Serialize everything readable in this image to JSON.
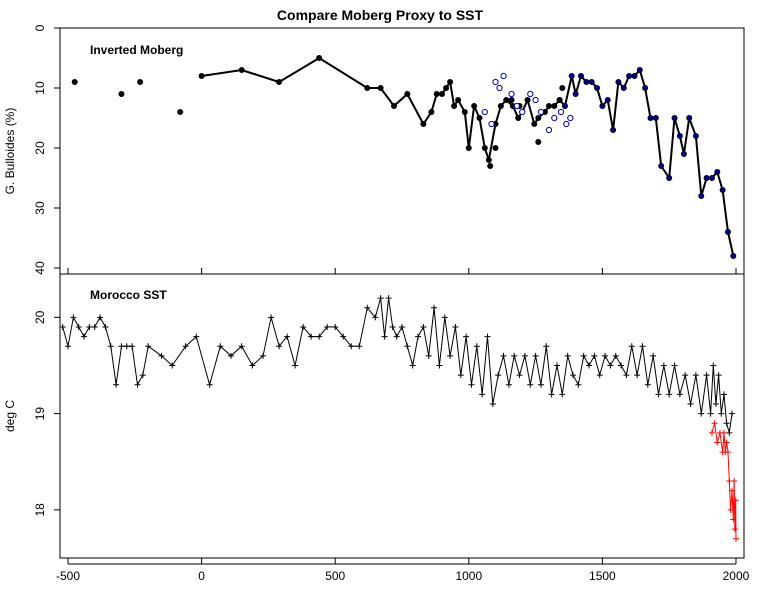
{
  "chart_data": [
    {
      "type": "line",
      "title": "Compare Moberg Proxy to SST",
      "annotation": "Inverted Moberg",
      "ylabel": "G. Bulloides (%)",
      "y_inverted": true,
      "xlim": [
        -530,
        2030
      ],
      "ylim": [
        0,
        41
      ],
      "x_ticks": [
        -500,
        0,
        500,
        1000,
        1500,
        2000
      ],
      "y_ticks": [
        0,
        10,
        20,
        30,
        40
      ],
      "colors": {
        "main": "#000000",
        "recent": "#00008b",
        "alt": "#0000cc"
      },
      "series": [
        {
          "style": "isolated-points",
          "points": [
            [
              -475,
              9
            ],
            [
              -300,
              11
            ],
            [
              -230,
              9
            ],
            [
              -80,
              14
            ]
          ]
        },
        {
          "style": "line-with-points",
          "points": [
            [
              0,
              8
            ],
            [
              150,
              7
            ],
            [
              290,
              9
            ],
            [
              440,
              5
            ],
            [
              620,
              10
            ],
            [
              670,
              10
            ],
            [
              720,
              13
            ],
            [
              770,
              11
            ],
            [
              830,
              16
            ],
            [
              860,
              14
            ],
            [
              880,
              11
            ],
            [
              900,
              11
            ],
            [
              915,
              10
            ],
            [
              930,
              9
            ],
            [
              945,
              13
            ],
            [
              960,
              12
            ],
            [
              985,
              14
            ],
            [
              1000,
              20
            ],
            [
              1020,
              13
            ],
            [
              1040,
              15
            ],
            [
              1060,
              20
            ],
            [
              1075,
              22
            ],
            [
              1100,
              16
            ],
            [
              1120,
              13
            ],
            [
              1140,
              12
            ],
            [
              1165,
              13
            ],
            [
              1185,
              15
            ],
            [
              1200,
              14
            ],
            [
              1220,
              12
            ],
            [
              1245,
              16
            ],
            [
              1260,
              15
            ],
            [
              1285,
              14
            ],
            [
              1300,
              13
            ],
            [
              1320,
              13
            ],
            [
              1340,
              12
            ]
          ]
        },
        {
          "style": "isolated-points",
          "points": [
            [
              1080,
              23
            ],
            [
              1100,
              20
            ],
            [
              1160,
              12
            ],
            [
              1190,
              13
            ],
            [
              1260,
              19
            ],
            [
              1350,
              10
            ]
          ]
        },
        {
          "style": "open-circles",
          "points": [
            [
              1060,
              14
            ],
            [
              1085,
              16
            ],
            [
              1100,
              9
            ],
            [
              1115,
              10
            ],
            [
              1130,
              8
            ],
            [
              1160,
              11
            ],
            [
              1180,
              13
            ],
            [
              1200,
              14
            ],
            [
              1230,
              11
            ],
            [
              1250,
              12
            ],
            [
              1270,
              14
            ],
            [
              1300,
              17
            ],
            [
              1320,
              15
            ],
            [
              1345,
              14
            ],
            [
              1365,
              16
            ],
            [
              1380,
              15
            ]
          ]
        },
        {
          "style": "line-with-points",
          "points": [
            [
              1340,
              12
            ],
            [
              1360,
              13
            ],
            [
              1385,
              8
            ],
            [
              1400,
              11
            ],
            [
              1420,
              8
            ],
            [
              1440,
              9
            ],
            [
              1460,
              9
            ],
            [
              1480,
              10
            ],
            [
              1500,
              13
            ],
            [
              1520,
              12
            ],
            [
              1540,
              17
            ],
            [
              1560,
              9
            ],
            [
              1580,
              10
            ],
            [
              1600,
              8
            ],
            [
              1620,
              8
            ],
            [
              1640,
              7
            ],
            [
              1660,
              10
            ],
            [
              1680,
              15
            ],
            [
              1700,
              15
            ],
            [
              1720,
              23
            ],
            [
              1750,
              25
            ],
            [
              1770,
              15
            ],
            [
              1790,
              18
            ],
            [
              1805,
              21
            ],
            [
              1825,
              15
            ],
            [
              1850,
              18
            ],
            [
              1870,
              28
            ],
            [
              1890,
              25
            ],
            [
              1910,
              25
            ],
            [
              1930,
              24
            ],
            [
              1950,
              27
            ],
            [
              1970,
              34
            ],
            [
              1990,
              38
            ]
          ]
        }
      ]
    },
    {
      "type": "line",
      "annotation": "Morocco SST",
      "ylabel": "deg C",
      "xlim": [
        -530,
        2030
      ],
      "ylim": [
        17.5,
        20.45
      ],
      "x_ticks": [
        -500,
        0,
        500,
        1000,
        1500,
        2000
      ],
      "y_ticks": [
        18,
        19,
        20
      ],
      "colors": {
        "main": "#000000",
        "recent": "#ff0000"
      },
      "series": [
        {
          "style": "line-with-plus",
          "color": "main",
          "points": [
            [
              -520,
              19.9
            ],
            [
              -500,
              19.7
            ],
            [
              -480,
              20.0
            ],
            [
              -460,
              19.9
            ],
            [
              -440,
              19.8
            ],
            [
              -420,
              19.9
            ],
            [
              -400,
              19.9
            ],
            [
              -380,
              20.0
            ],
            [
              -360,
              19.9
            ],
            [
              -340,
              19.7
            ],
            [
              -320,
              19.3
            ],
            [
              -300,
              19.7
            ],
            [
              -280,
              19.7
            ],
            [
              -260,
              19.7
            ],
            [
              -240,
              19.3
            ],
            [
              -220,
              19.4
            ],
            [
              -200,
              19.7
            ],
            [
              -150,
              19.6
            ],
            [
              -110,
              19.5
            ],
            [
              -60,
              19.7
            ],
            [
              -20,
              19.8
            ],
            [
              30,
              19.3
            ],
            [
              70,
              19.7
            ],
            [
              110,
              19.6
            ],
            [
              150,
              19.7
            ],
            [
              190,
              19.5
            ],
            [
              230,
              19.6
            ],
            [
              260,
              20.0
            ],
            [
              290,
              19.7
            ],
            [
              320,
              19.8
            ],
            [
              350,
              19.5
            ],
            [
              380,
              19.9
            ],
            [
              410,
              19.8
            ],
            [
              440,
              19.8
            ],
            [
              470,
              19.9
            ],
            [
              500,
              19.9
            ],
            [
              530,
              19.8
            ],
            [
              560,
              19.7
            ],
            [
              590,
              19.7
            ],
            [
              620,
              20.1
            ],
            [
              650,
              20.0
            ],
            [
              670,
              20.2
            ],
            [
              685,
              19.8
            ],
            [
              700,
              20.2
            ],
            [
              715,
              19.9
            ],
            [
              730,
              19.8
            ],
            [
              750,
              19.9
            ],
            [
              770,
              19.7
            ],
            [
              790,
              19.5
            ],
            [
              810,
              19.8
            ],
            [
              830,
              19.9
            ],
            [
              850,
              19.6
            ],
            [
              870,
              20.1
            ],
            [
              890,
              19.5
            ],
            [
              910,
              20.0
            ],
            [
              930,
              19.6
            ],
            [
              950,
              19.9
            ],
            [
              970,
              19.4
            ],
            [
              990,
              19.8
            ],
            [
              1010,
              19.3
            ],
            [
              1030,
              19.7
            ],
            [
              1050,
              19.2
            ],
            [
              1070,
              19.8
            ],
            [
              1090,
              19.1
            ],
            [
              1110,
              19.4
            ],
            [
              1130,
              19.6
            ],
            [
              1150,
              19.3
            ],
            [
              1170,
              19.6
            ],
            [
              1190,
              19.4
            ],
            [
              1210,
              19.6
            ],
            [
              1230,
              19.3
            ],
            [
              1250,
              19.6
            ],
            [
              1270,
              19.3
            ],
            [
              1290,
              19.7
            ],
            [
              1310,
              19.2
            ],
            [
              1330,
              19.5
            ],
            [
              1350,
              19.2
            ],
            [
              1370,
              19.6
            ],
            [
              1390,
              19.4
            ],
            [
              1410,
              19.3
            ],
            [
              1430,
              19.6
            ],
            [
              1450,
              19.5
            ],
            [
              1470,
              19.6
            ],
            [
              1490,
              19.4
            ],
            [
              1510,
              19.6
            ],
            [
              1530,
              19.5
            ],
            [
              1550,
              19.6
            ],
            [
              1570,
              19.5
            ],
            [
              1590,
              19.4
            ],
            [
              1610,
              19.7
            ],
            [
              1630,
              19.4
            ],
            [
              1650,
              19.7
            ],
            [
              1670,
              19.3
            ],
            [
              1690,
              19.6
            ],
            [
              1710,
              19.2
            ],
            [
              1730,
              19.5
            ],
            [
              1750,
              19.2
            ],
            [
              1770,
              19.5
            ],
            [
              1790,
              19.2
            ],
            [
              1810,
              19.4
            ],
            [
              1830,
              19.1
            ],
            [
              1850,
              19.4
            ],
            [
              1870,
              19.0
            ],
            [
              1890,
              19.4
            ],
            [
              1905,
              19.0
            ],
            [
              1915,
              19.5
            ],
            [
              1925,
              19.1
            ],
            [
              1935,
              19.4
            ],
            [
              1945,
              19.0
            ],
            [
              1955,
              19.2
            ],
            [
              1965,
              18.9
            ],
            [
              1975,
              18.8
            ],
            [
              1985,
              19.0
            ]
          ]
        },
        {
          "style": "line-with-plus",
          "color": "recent",
          "points": [
            [
              1910,
              18.8
            ],
            [
              1920,
              18.9
            ],
            [
              1930,
              18.7
            ],
            [
              1940,
              18.8
            ],
            [
              1950,
              18.6
            ],
            [
              1955,
              18.8
            ],
            [
              1960,
              18.6
            ],
            [
              1965,
              18.7
            ],
            [
              1970,
              18.6
            ],
            [
              1975,
              18.3
            ],
            [
              1980,
              18.0
            ],
            [
              1985,
              18.2
            ],
            [
              1990,
              17.9
            ],
            [
              1993,
              18.3
            ],
            [
              1996,
              17.8
            ],
            [
              1999,
              18.1
            ],
            [
              2000,
              17.7
            ]
          ]
        }
      ]
    }
  ]
}
